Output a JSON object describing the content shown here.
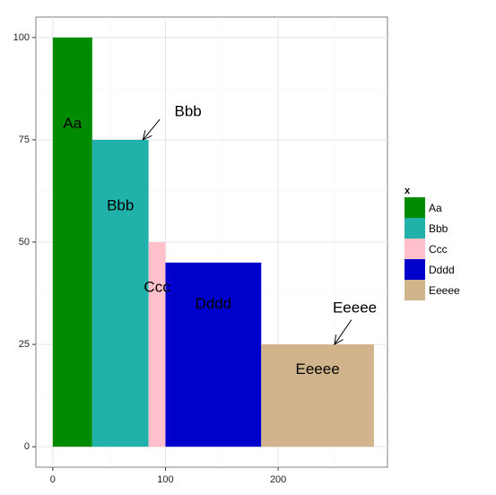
{
  "chart_data": {
    "type": "bar",
    "variable_width": true,
    "xlim": [
      -15,
      297
    ],
    "ylim": [
      -5,
      105
    ],
    "x_ticks": [
      0,
      100,
      200
    ],
    "x_tick_labels": [
      "0",
      "100",
      "200"
    ],
    "y_ticks": [
      0,
      25,
      50,
      75,
      100
    ],
    "y_tick_labels": [
      "0",
      "25",
      "50",
      "75",
      "100"
    ],
    "bars": [
      {
        "category": "Aa",
        "x_start": 0,
        "x_end": 35,
        "value": 100,
        "color": "#008B00"
      },
      {
        "category": "Bbb",
        "x_start": 35,
        "x_end": 85,
        "value": 75,
        "color": "#20B2AA"
      },
      {
        "category": "Ccc",
        "x_start": 85,
        "x_end": 100,
        "value": 50,
        "color": "#FFC0CB"
      },
      {
        "category": "Dddd",
        "x_start": 100,
        "x_end": 185,
        "value": 45,
        "color": "#0000CD"
      },
      {
        "category": "Eeeee",
        "x_start": 185,
        "x_end": 285,
        "value": 25,
        "color": "#D2B48C"
      }
    ],
    "bar_labels": [
      {
        "text": "Aa",
        "x": 17.5,
        "y": 79
      },
      {
        "text": "Bbb",
        "x": 60,
        "y": 59
      },
      {
        "text": "Ccc",
        "x": 92.5,
        "y": 39
      },
      {
        "text": "Dddd",
        "x": 142.5,
        "y": 35
      },
      {
        "text": "Eeeee",
        "x": 235,
        "y": 19
      }
    ],
    "annotations": [
      {
        "text": "Bbb",
        "text_x": 120,
        "text_y": 82,
        "arrow_from": [
          95,
          80
        ],
        "arrow_to": [
          80,
          75
        ]
      },
      {
        "text": "Eeeee",
        "text_x": 268,
        "text_y": 34,
        "arrow_from": [
          265,
          31
        ],
        "arrow_to": [
          250,
          25
        ]
      }
    ],
    "legend": {
      "title": "x",
      "position": "right",
      "entries": [
        "Aa",
        "Bbb",
        "Ccc",
        "Dddd",
        "Eeeee"
      ]
    },
    "grid": true,
    "theme": "bw"
  }
}
